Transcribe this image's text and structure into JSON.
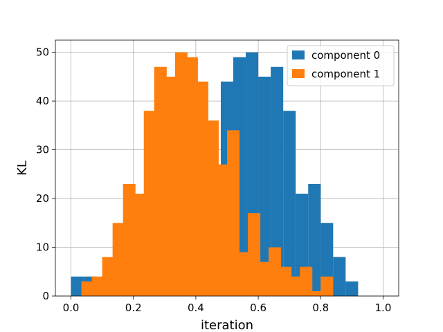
{
  "chart_data": {
    "type": "histogram",
    "title": "",
    "xlabel": "iteration",
    "ylabel": "KL",
    "xlim": [
      -0.05,
      1.05
    ],
    "ylim": [
      0,
      52.5
    ],
    "xticks": [
      0.0,
      0.2,
      0.4,
      0.6,
      0.8,
      1.0
    ],
    "xtick_labels": [
      "0.0",
      "0.2",
      "0.4",
      "0.6",
      "0.8",
      "1.0"
    ],
    "yticks": [
      0,
      10,
      20,
      30,
      40,
      50
    ],
    "ytick_labels": [
      "0",
      "10",
      "20",
      "30",
      "40",
      "50"
    ],
    "grid": true,
    "legend_position": "top-right",
    "bin_width": 0.04,
    "series": [
      {
        "name": "component 0",
        "color": "#1f77b4",
        "bins": [
          {
            "start": 0.0,
            "value": 4
          },
          {
            "start": 0.04,
            "value": 4
          },
          {
            "start": 0.08,
            "value": 0
          },
          {
            "start": 0.12,
            "value": 0
          },
          {
            "start": 0.16,
            "value": 0
          },
          {
            "start": 0.2,
            "value": 0
          },
          {
            "start": 0.24,
            "value": 0
          },
          {
            "start": 0.28,
            "value": 0
          },
          {
            "start": 0.32,
            "value": 0
          },
          {
            "start": 0.36,
            "value": 0
          },
          {
            "start": 0.4,
            "value": 0
          },
          {
            "start": 0.44,
            "value": 0
          },
          {
            "start": 0.48,
            "value": 44
          },
          {
            "start": 0.52,
            "value": 49
          },
          {
            "start": 0.56,
            "value": 50
          },
          {
            "start": 0.6,
            "value": 45
          },
          {
            "start": 0.64,
            "value": 47
          },
          {
            "start": 0.68,
            "value": 38
          },
          {
            "start": 0.72,
            "value": 21
          },
          {
            "start": 0.76,
            "value": 23
          },
          {
            "start": 0.8,
            "value": 15
          },
          {
            "start": 0.84,
            "value": 8
          },
          {
            "start": 0.88,
            "value": 3
          },
          {
            "start": 0.92,
            "value": 0
          }
        ]
      },
      {
        "name": "component 1",
        "color": "#ff7f0e",
        "bins": [
          {
            "start": 0.0333,
            "value": 3
          },
          {
            "start": 0.0667,
            "value": 4
          },
          {
            "start": 0.1,
            "value": 8
          },
          {
            "start": 0.1333,
            "value": 15
          },
          {
            "start": 0.1667,
            "value": 23
          },
          {
            "start": 0.2,
            "value": 21
          },
          {
            "start": 0.2333,
            "value": 38
          },
          {
            "start": 0.2667,
            "value": 47
          },
          {
            "start": 0.3,
            "value": 45
          },
          {
            "start": 0.3333,
            "value": 50
          },
          {
            "start": 0.3667,
            "value": 49
          },
          {
            "start": 0.4,
            "value": 44
          },
          {
            "start": 0.4333,
            "value": 36
          },
          {
            "start": 0.4667,
            "value": 27
          },
          {
            "start": 0.5,
            "value": 34
          },
          {
            "start": 0.5333,
            "value": 9
          },
          {
            "start": 0.5667,
            "value": 17
          },
          {
            "start": 0.6,
            "value": 7
          },
          {
            "start": 0.6333,
            "value": 10
          },
          {
            "start": 0.6667,
            "value": 6
          },
          {
            "start": 0.7,
            "value": 4
          },
          {
            "start": 0.7333,
            "value": 6
          },
          {
            "start": 0.7667,
            "value": 1
          },
          {
            "start": 0.8,
            "value": 4
          }
        ]
      }
    ]
  }
}
